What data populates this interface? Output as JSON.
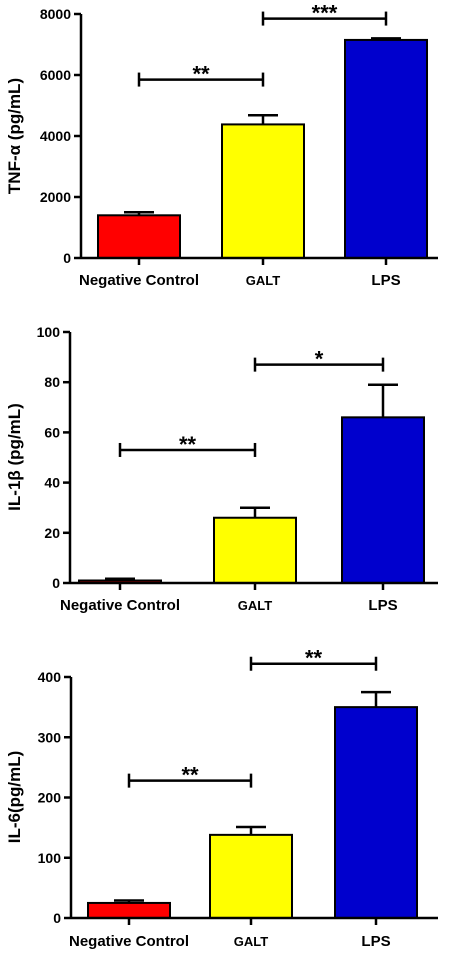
{
  "chart_data": [
    {
      "type": "bar",
      "ylabel": "TNF-α (pg/mL)",
      "ylim": [
        0,
        8000
      ],
      "yticks": [
        "0",
        "2000",
        "4000",
        "6000",
        "8000"
      ],
      "categories": [
        "Negative Control",
        "GALT",
        "LPS"
      ],
      "values": [
        1400,
        4380,
        7150
      ],
      "errors": [
        100,
        300,
        50
      ],
      "colors": [
        "#ff0000",
        "#ffff00",
        "#0000cd"
      ],
      "significance": [
        {
          "from": 0,
          "to": 1,
          "y": 5850,
          "label": "**"
        },
        {
          "from": 1,
          "to": 2,
          "y": 7850,
          "label": "***"
        }
      ]
    },
    {
      "type": "bar",
      "ylabel": "IL-1β (pg/mL)",
      "ylim": [
        0,
        100
      ],
      "yticks": [
        "0",
        "20",
        "40",
        "60",
        "80",
        "100"
      ],
      "categories": [
        "Negative Control",
        "GALT",
        "LPS"
      ],
      "values": [
        1,
        26,
        66
      ],
      "errors": [
        0.7,
        4,
        13
      ],
      "colors": [
        "#ff0000",
        "#ffff00",
        "#0000cd"
      ],
      "significance": [
        {
          "from": 0,
          "to": 1,
          "y": 53,
          "label": "**"
        },
        {
          "from": 1,
          "to": 2,
          "y": 87,
          "label": "*"
        }
      ]
    },
    {
      "type": "bar",
      "ylabel": "IL-6(pg/mL)",
      "ylim": [
        0,
        400
      ],
      "yticks": [
        "0",
        "100",
        "200",
        "300",
        "400"
      ],
      "categories": [
        "Negative Control",
        "GALT",
        "LPS"
      ],
      "values": [
        25,
        138,
        350
      ],
      "errors": [
        4,
        13,
        25
      ],
      "colors": [
        "#ff0000",
        "#ffff00",
        "#0000cd"
      ],
      "significance": [
        {
          "from": 0,
          "to": 1,
          "y": 228,
          "label": "**"
        },
        {
          "from": 1,
          "to": 2,
          "y": 422,
          "label": "**"
        }
      ]
    }
  ]
}
